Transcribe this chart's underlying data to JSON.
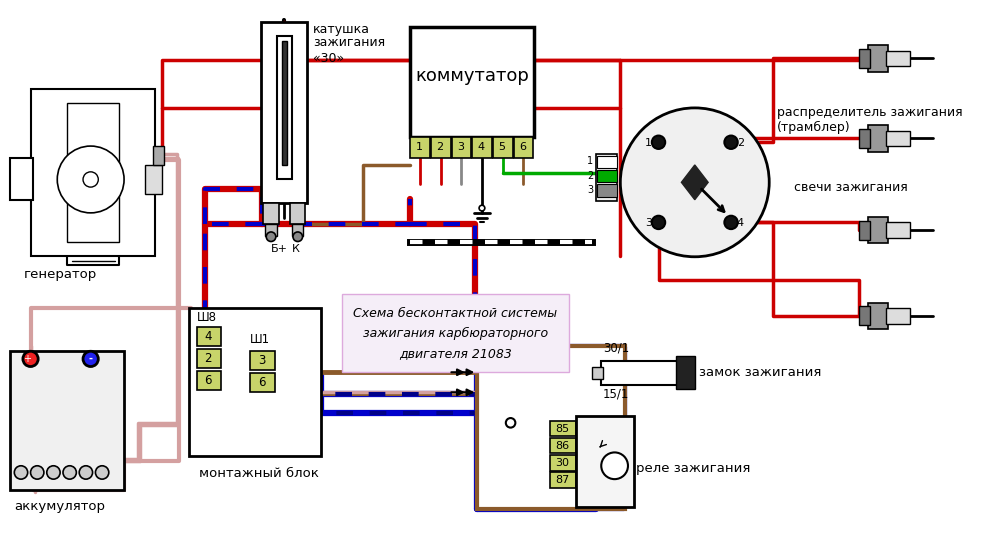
{
  "bg": "#ffffff",
  "RED": "#cc0000",
  "BLUE": "#0000cc",
  "PINK": "#d4a0a0",
  "BLACK": "#000000",
  "GREEN": "#00aa00",
  "BROWN": "#8B5A2B",
  "GRAY": "#888888",
  "LYELLOW": "#c8d46a",
  "SCHEMA_BG": "#f5eef8",
  "labels": {
    "generator": "генератор",
    "coil1": "катушка",
    "coil2": "зажигания",
    "coil3": "«30»",
    "comm": "коммутатор",
    "dist1": "распределитель зажигания",
    "dist2": "(трамблер)",
    "plugs": "свечи зажигания",
    "accu": "аккумулятор",
    "montblok": "монтажный блок",
    "zamok": "замок зажигания",
    "rele": "реле зажигания",
    "schema1": "Схема бесконтактной системы",
    "schema2": "зажигания карбюраторного",
    "schema3": "двигателя 21083",
    "bplus": "Б+",
    "k": "К",
    "sh8": "Ш8",
    "sh1": "Ш1",
    "l30": "30/1",
    "l15": "15/1"
  }
}
